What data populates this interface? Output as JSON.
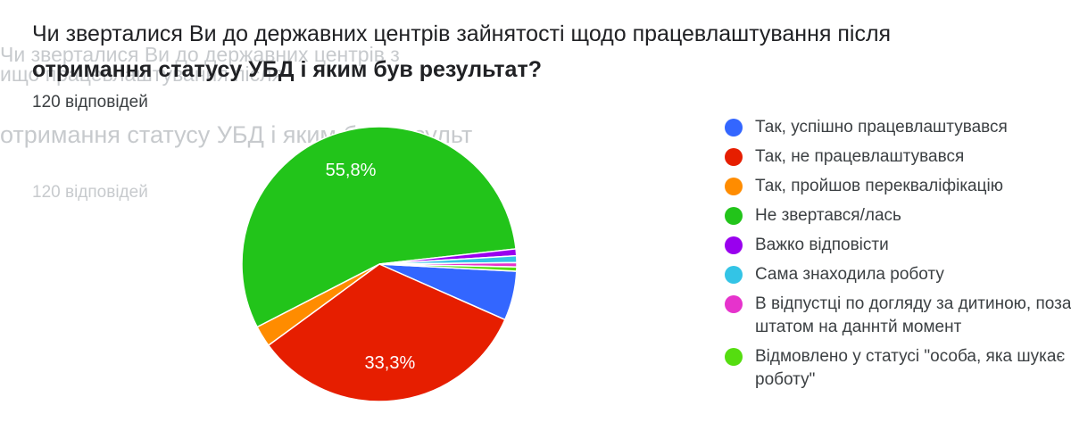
{
  "question": {
    "line1": "Чи зверталися Ви до державних центрів зайнятості щодо працевлаштування після",
    "line2": "отримання статусу УБД і яким був результат?",
    "responses": "120 відповідей"
  },
  "ghost": {
    "a1": "Чи зверталися Ви до державних центрів з",
    "a2": "ищо працевлаштування після",
    "b": "отримання статусу УБД і яким був результ",
    "c": "120 відповідей"
  },
  "chart_data": {
    "type": "pie",
    "title": "",
    "slices": [
      {
        "label": "Так, успішно працевлаштувався",
        "value": 5.8,
        "color": "#3366ff"
      },
      {
        "label": "Так, не працевлаштувався",
        "value": 33.3,
        "color": "#e61e00"
      },
      {
        "label": "Так, пройшов перекваліфікацію",
        "value": 2.5,
        "color": "#ff8c00"
      },
      {
        "label": "Не звертався/лась",
        "value": 55.8,
        "color": "#22c41a"
      },
      {
        "label": "Важко відповісти",
        "value": 0.8,
        "color": "#9900ee"
      },
      {
        "label": "Сама знаходила роботу",
        "value": 0.8,
        "color": "#33c4e6"
      },
      {
        "label": "В відпустці по догляду за дитиною, поза штатом на даннтй момент",
        "value": 0.5,
        "color": "#e633cc"
      },
      {
        "label": "Відмовлено у статусі \"особа, яка шукає роботу\"",
        "value": 0.5,
        "color": "#55dd10"
      }
    ],
    "data_labels": [
      "55,8%",
      "33,3%"
    ],
    "legend_position": "right"
  }
}
